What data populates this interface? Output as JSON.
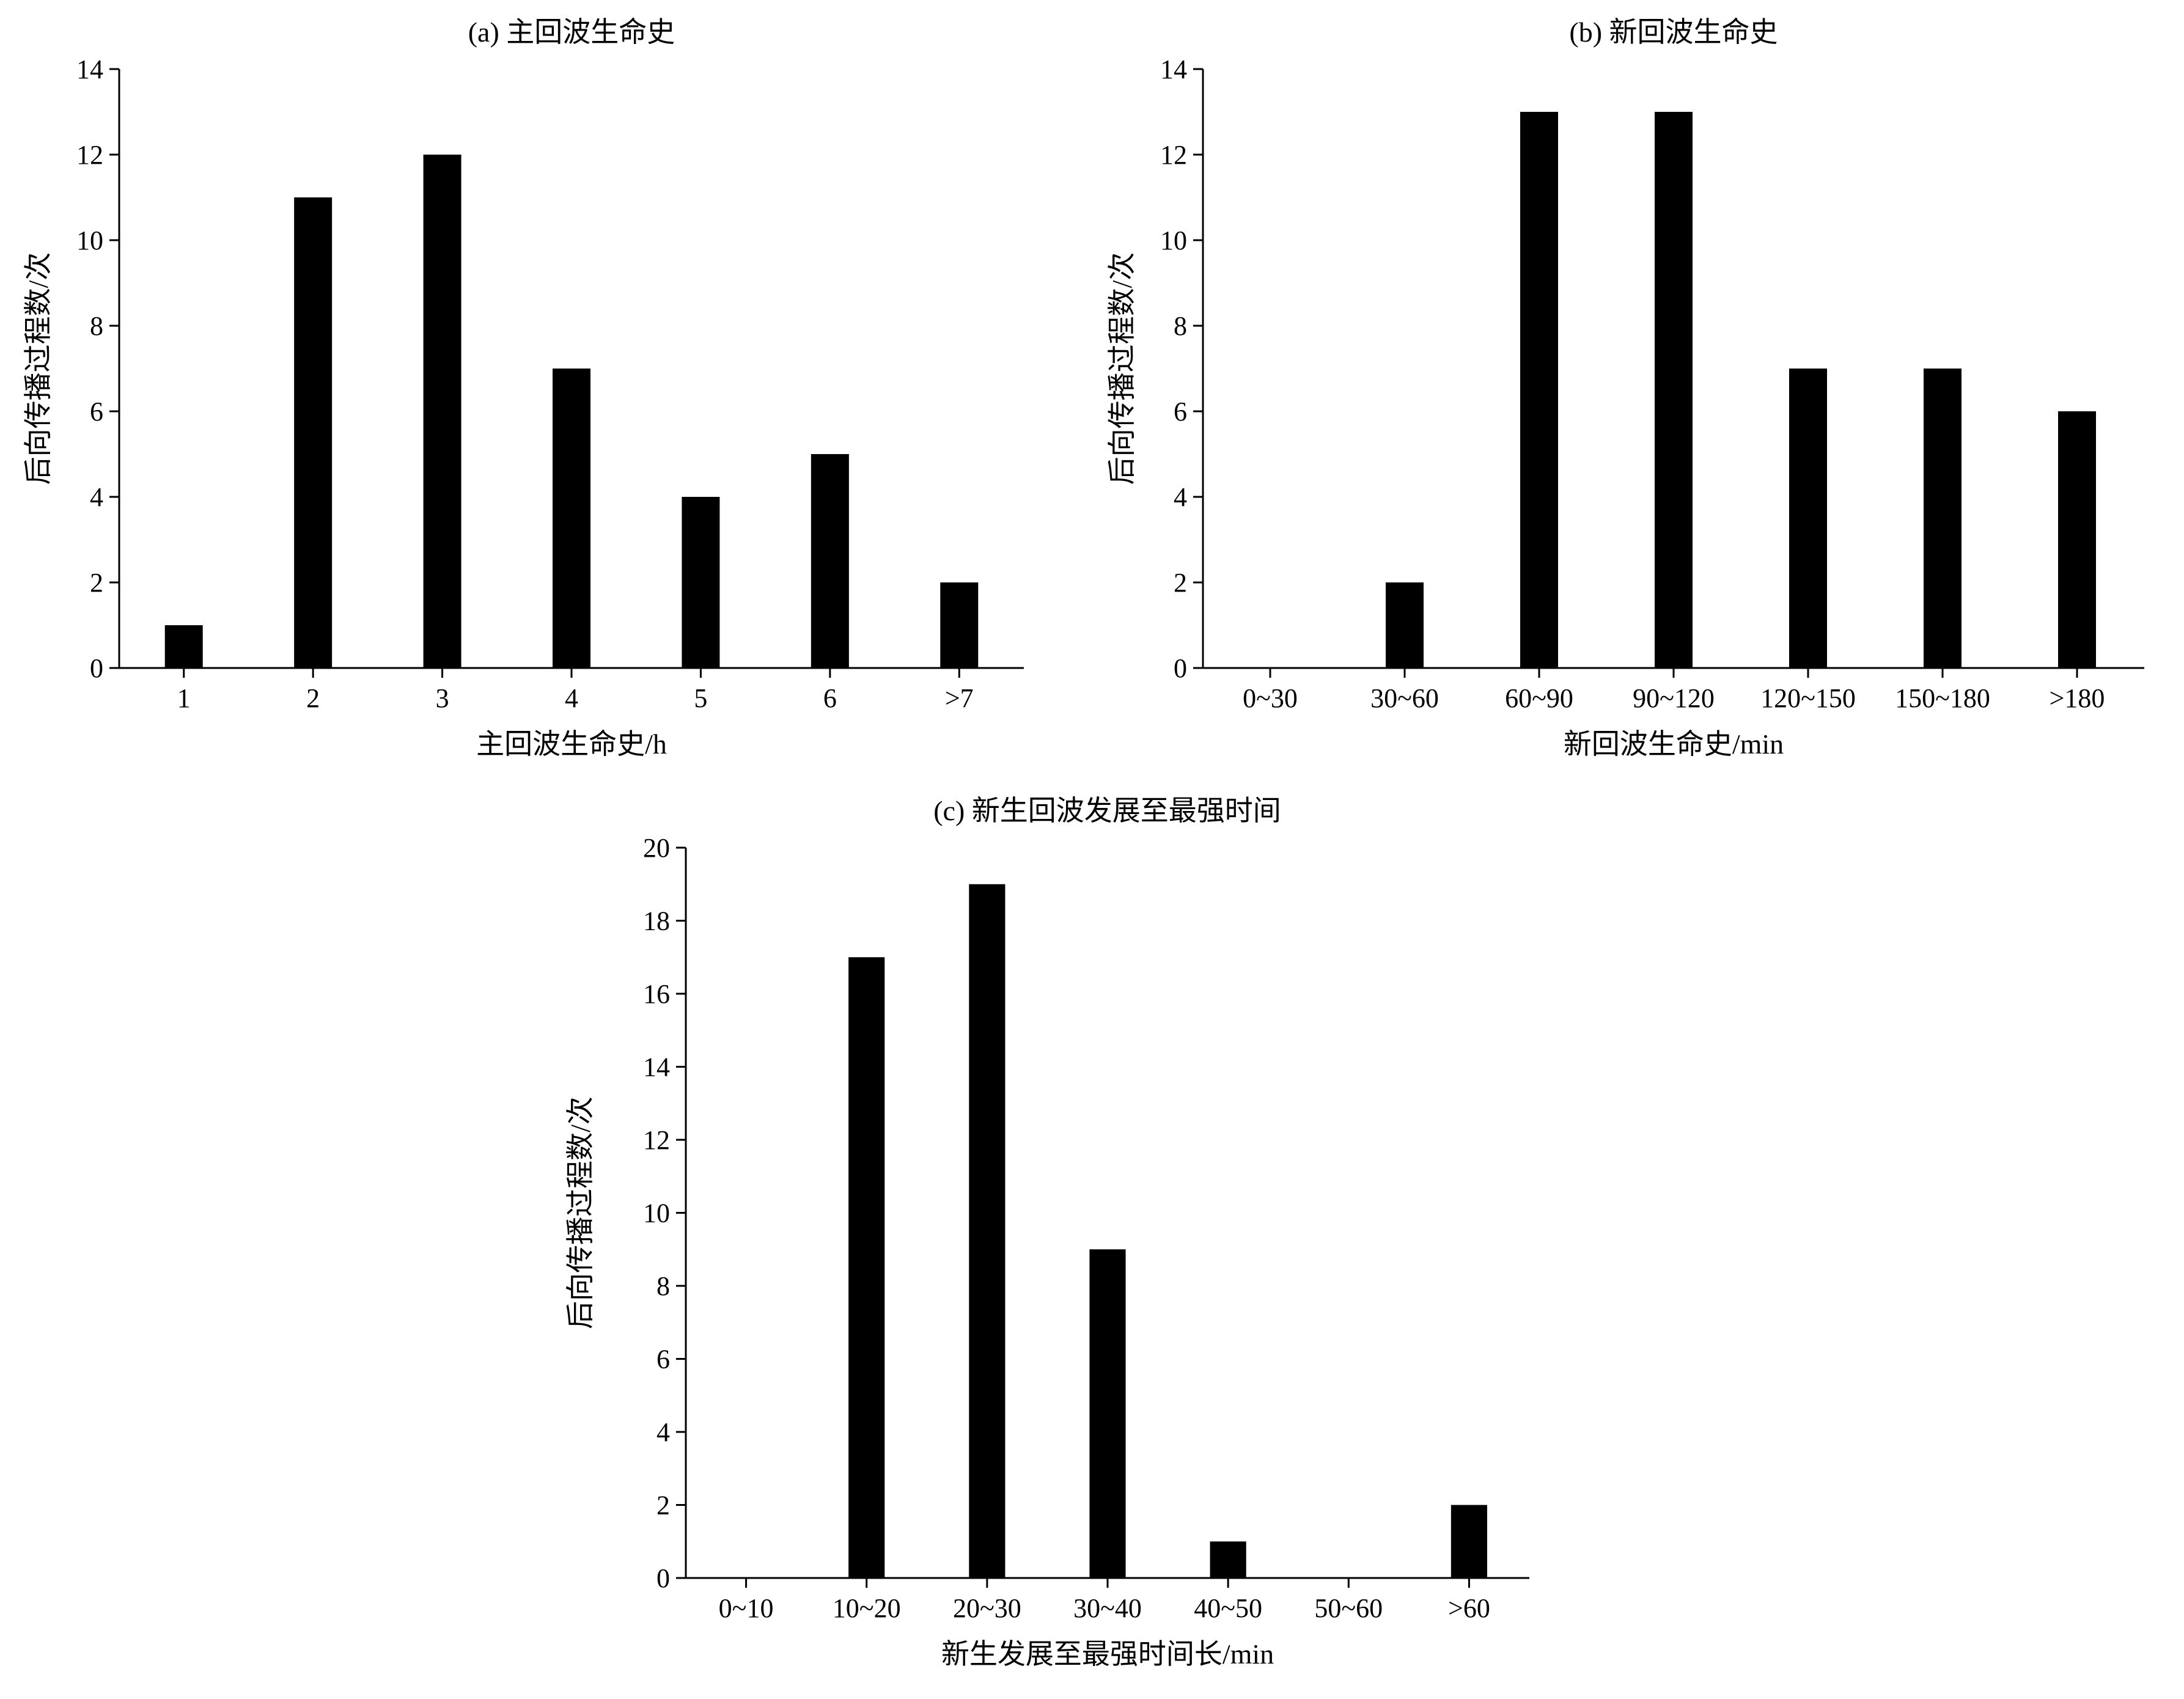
{
  "style": {
    "background": "#ffffff",
    "bar_color": "#000000",
    "axis_color": "#000000",
    "text_color": "#000000"
  },
  "chart_data": [
    {
      "type": "bar",
      "title": "(a) 主回波生命史",
      "categories": [
        "1",
        "2",
        "3",
        "4",
        "5",
        "6",
        ">7"
      ],
      "values": [
        1,
        11,
        12,
        7,
        4,
        5,
        2
      ],
      "xlabel": "主回波生命史/h",
      "ylabel": "后向传播过程数/次",
      "ylim": [
        0,
        14
      ],
      "ytick_step": 2,
      "grid": false,
      "legend": false
    },
    {
      "type": "bar",
      "title": "(b) 新回波生命史",
      "categories": [
        "0~30",
        "30~60",
        "60~90",
        "90~120",
        "120~150",
        "150~180",
        ">180"
      ],
      "values": [
        0,
        2,
        13,
        13,
        7,
        7,
        6
      ],
      "xlabel": "新回波生命史/min",
      "ylabel": "后向传播过程数/次",
      "ylim": [
        0,
        14
      ],
      "ytick_step": 2,
      "grid": false,
      "legend": false
    },
    {
      "type": "bar",
      "title": "(c) 新生回波发展至最强时间",
      "categories": [
        "0~10",
        "10~20",
        "20~30",
        "30~40",
        "40~50",
        "50~60",
        ">60"
      ],
      "values": [
        0,
        17,
        19,
        9,
        1,
        0,
        2
      ],
      "xlabel": "新生发展至最强时间长/min",
      "ylabel": "后向传播过程数/次",
      "ylim": [
        0,
        20
      ],
      "ytick_step": 2,
      "grid": false,
      "legend": false
    }
  ]
}
